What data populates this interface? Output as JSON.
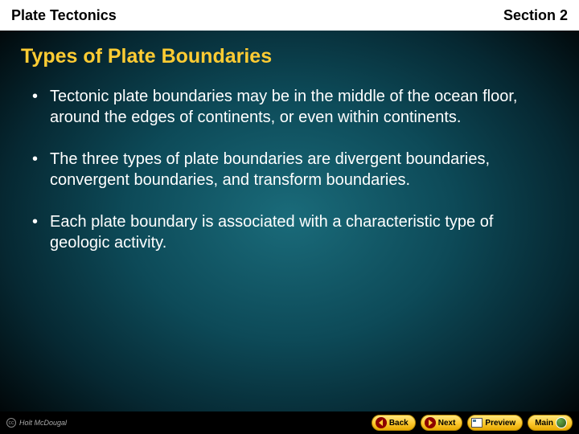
{
  "header": {
    "left": "Plate Tectonics",
    "right": "Section 2"
  },
  "heading": "Types of Plate Boundaries",
  "bullets": [
    "Tectonic plate boundaries may be in the middle of the ocean floor, around the edges of continents, or even within continents.",
    "The three types of plate boundaries are divergent boundaries, convergent boundaries, and transform boundaries.",
    "Each plate boundary is associated with a characteristic type of geologic activity."
  ],
  "footer": {
    "copyright_symbol": "cc",
    "copyright_text": "Holt McDougal",
    "nav": {
      "back": "Back",
      "next": "Next",
      "preview": "Preview",
      "main": "Main"
    }
  },
  "colors": {
    "heading": "#ffcc33",
    "body_text": "#ffffff",
    "header_bg": "#ffffff",
    "header_text": "#000000",
    "button_gradient_top": "#ffe680",
    "button_gradient_mid": "#ffcc33",
    "button_gradient_bottom": "#e6a800",
    "arrow_circle": "#8b0000"
  },
  "typography": {
    "header_fontsize": 18,
    "heading_fontsize": 25,
    "bullet_fontsize": 20,
    "nav_fontsize": 10
  }
}
